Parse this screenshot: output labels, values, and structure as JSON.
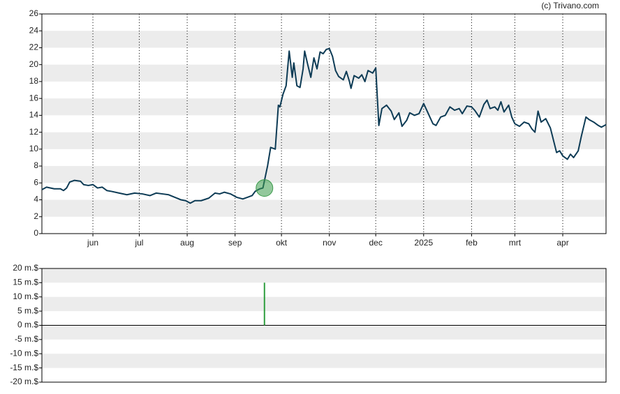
{
  "chart_data": [
    {
      "type": "line",
      "source": "(c) Trivano.com",
      "x": [
        0,
        3,
        8,
        12,
        14,
        16,
        18,
        21,
        25,
        27,
        30,
        33,
        36,
        39,
        42,
        45,
        50,
        55,
        60,
        65,
        70,
        74,
        78,
        82,
        86,
        90,
        93,
        96,
        99,
        103,
        108,
        112,
        115,
        118,
        122,
        126,
        130,
        133,
        136,
        138,
        141,
        143,
        146,
        148,
        151,
        153,
        154,
        156,
        158,
        160,
        162,
        163,
        165,
        167,
        169,
        170,
        172,
        174,
        176,
        178,
        180,
        182,
        184,
        186,
        188,
        190,
        192,
        195,
        197,
        199,
        200,
        202,
        205,
        207,
        209,
        211,
        214,
        216,
        218,
        220,
        223,
        226,
        228,
        231,
        233,
        236,
        238,
        241,
        244,
        247,
        250,
        253,
        255,
        258,
        261,
        264,
        267,
        270,
        272,
        275,
        278,
        280,
        283,
        286,
        288,
        290,
        293,
        295,
        297,
        299,
        302,
        304,
        306,
        309,
        312,
        315,
        317,
        319,
        321,
        323,
        326,
        329,
        333,
        335,
        337,
        340,
        342,
        344,
        347,
        349,
        352,
        354,
        357,
        360,
        362,
        365
      ],
      "series": [
        {
          "color": "#0d3b55",
          "values": [
            5.2,
            5.5,
            5.3,
            5.3,
            5.1,
            5.4,
            6.1,
            6.3,
            6.2,
            5.8,
            5.7,
            5.8,
            5.4,
            5.5,
            5.1,
            5.0,
            4.8,
            4.6,
            4.8,
            4.7,
            4.5,
            4.8,
            4.7,
            4.6,
            4.3,
            4.0,
            3.9,
            3.6,
            3.9,
            3.9,
            4.2,
            4.8,
            4.7,
            4.9,
            4.7,
            4.3,
            4.1,
            4.3,
            4.5,
            5.0,
            5.3,
            5.4,
            8.0,
            10.2,
            10.0,
            15.2,
            15.0,
            16.5,
            17.5,
            21.6,
            18.5,
            20.2,
            17.5,
            17.3,
            19.5,
            21.6,
            20.0,
            18.5,
            20.8,
            19.5,
            21.5,
            21.3,
            21.8,
            21.9,
            21.0,
            19.3,
            18.6,
            18.2,
            19.2,
            18.0,
            17.2,
            18.7,
            18.4,
            18.8,
            18.0,
            19.3,
            19.0,
            19.6,
            12.8,
            14.8,
            15.2,
            14.5,
            13.5,
            14.3,
            12.7,
            13.4,
            14.3,
            14.0,
            14.2,
            15.4,
            14.2,
            13.0,
            12.8,
            13.8,
            14.0,
            15.0,
            14.6,
            14.8,
            14.2,
            15.1,
            15.0,
            14.6,
            13.8,
            15.3,
            15.8,
            14.8,
            15.0,
            14.6,
            15.6,
            14.4,
            15.2,
            13.8,
            13.0,
            12.7,
            13.2,
            13.0,
            12.4,
            12.0,
            14.5,
            13.2,
            13.6,
            12.5,
            9.6,
            9.8,
            9.2,
            8.8,
            9.4,
            9.0,
            9.8,
            11.5,
            13.8,
            13.5,
            13.2,
            12.8,
            12.6,
            12.9
          ]
        }
      ],
      "marker": {
        "x": 144,
        "y": 5.4,
        "color": "#3a9a4a"
      },
      "xlim": [
        0,
        365
      ],
      "xticks": [
        {
          "value": 33,
          "label": "jun"
        },
        {
          "value": 63,
          "label": "jul"
        },
        {
          "value": 94,
          "label": "aug"
        },
        {
          "value": 125,
          "label": "sep"
        },
        {
          "value": 155,
          "label": "okt"
        },
        {
          "value": 186,
          "label": "nov"
        },
        {
          "value": 216,
          "label": "dec"
        },
        {
          "value": 247,
          "label": "2025"
        },
        {
          "value": 278,
          "label": "feb"
        },
        {
          "value": 306,
          "label": "mrt"
        },
        {
          "value": 337,
          "label": "apr"
        }
      ],
      "ylim": [
        0,
        26
      ],
      "yticks": [
        0,
        2,
        4,
        6,
        8,
        10,
        12,
        14,
        16,
        18,
        20,
        22,
        24,
        26
      ],
      "grid": true
    },
    {
      "type": "bar",
      "x": [
        144
      ],
      "series": [
        {
          "color": "#2e9e3e",
          "values": [
            15000000
          ]
        }
      ],
      "xlim": [
        0,
        365
      ],
      "ylim": [
        -20000000,
        20000000
      ],
      "yticks": [
        {
          "value": -20000000,
          "label": "-20 m.$"
        },
        {
          "value": -15000000,
          "label": "-15 m.$"
        },
        {
          "value": -10000000,
          "label": "-10 m.$"
        },
        {
          "value": -5000000,
          "label": "-5 m.$"
        },
        {
          "value": 0,
          "label": "0 m.$"
        },
        {
          "value": 5000000,
          "label": "5 m.$"
        },
        {
          "value": 10000000,
          "label": "10 m.$"
        },
        {
          "value": 15000000,
          "label": "15 m.$"
        },
        {
          "value": 20000000,
          "label": "20 m.$"
        }
      ],
      "grid": true
    }
  ]
}
